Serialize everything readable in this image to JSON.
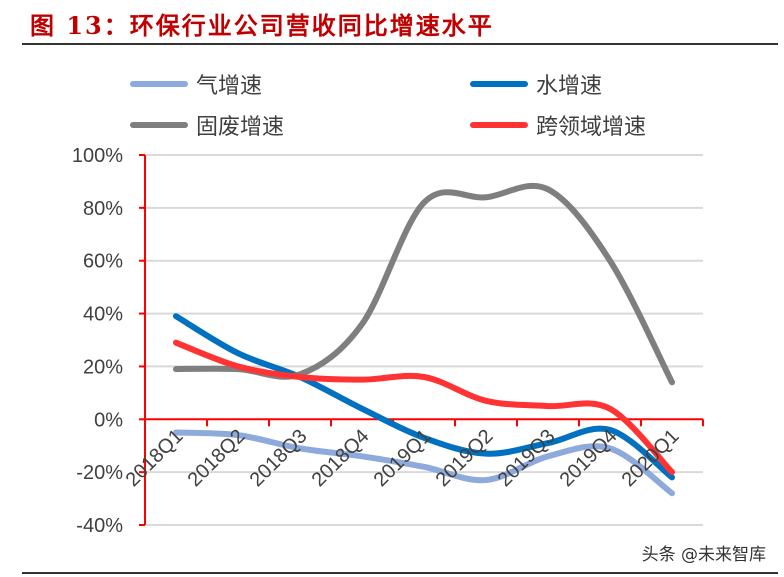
{
  "title": "图 13：环保行业公司营收同比增速水平",
  "watermark": "头条 @未来智库",
  "chart_data": {
    "type": "line",
    "title": "图 13：环保行业公司营收同比增速水平",
    "categories": [
      "2018Q1",
      "2018Q2",
      "2018Q3",
      "2018Q4",
      "2019Q1",
      "2019Q2",
      "2019Q3",
      "2019Q4",
      "2020Q1"
    ],
    "ylim": [
      -40,
      100
    ],
    "yticks": [
      100,
      80,
      60,
      40,
      20,
      0,
      -20,
      -40
    ],
    "ytick_labels": [
      "100%",
      "80%",
      "60%",
      "40%",
      "20%",
      "0%",
      "-20%",
      "-40%"
    ],
    "grid": true,
    "legend_position": "top",
    "series": [
      {
        "name": "气增速",
        "color": "#8EA9DB",
        "values": [
          -5,
          -6,
          -11,
          -14,
          -18,
          -23,
          -14,
          -11,
          -28
        ]
      },
      {
        "name": "水增速",
        "color": "#0070C0",
        "values": [
          39,
          25,
          16,
          4,
          -7,
          -13,
          -9,
          -4,
          -22
        ]
      },
      {
        "name": "固废增速",
        "color": "#7F7F7F",
        "values": [
          19,
          19,
          17,
          36,
          82,
          84,
          87,
          60,
          14
        ]
      },
      {
        "name": "跨领域增速",
        "color": "#FF3333",
        "values": [
          29,
          20,
          16,
          15,
          16,
          7,
          5,
          4,
          -20
        ]
      }
    ]
  }
}
